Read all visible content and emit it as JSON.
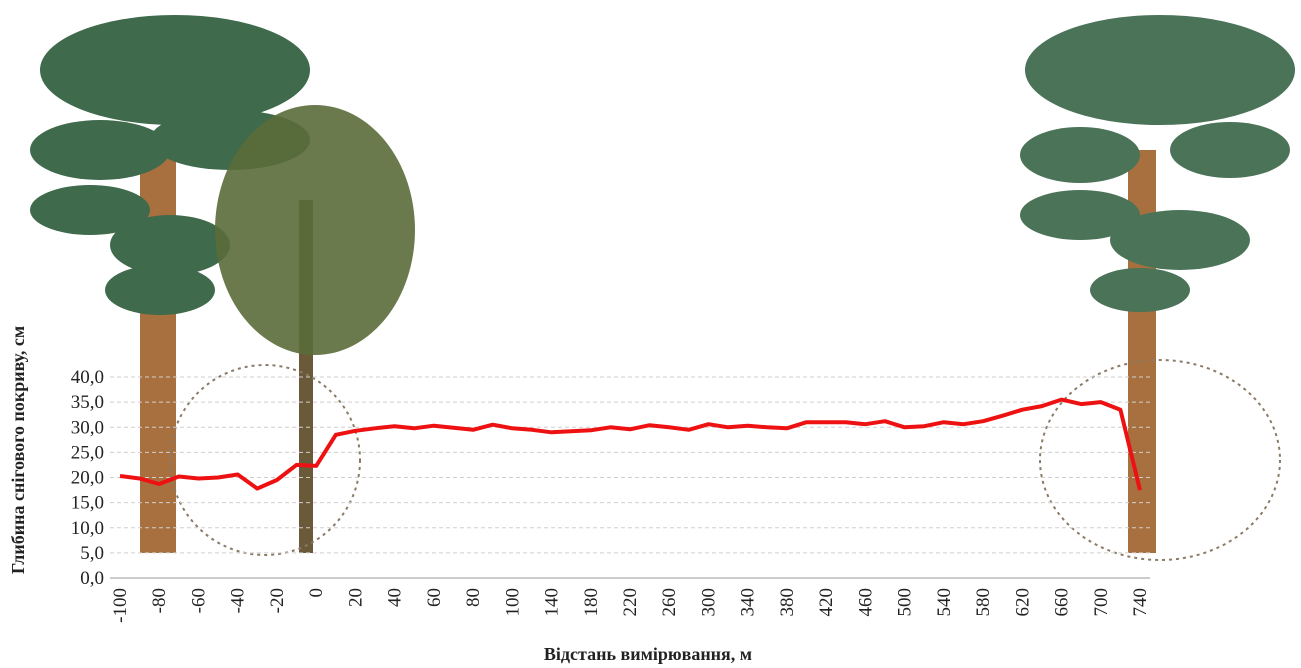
{
  "chart_data": {
    "type": "line",
    "x_label": "Відстань вимірювання, м",
    "y_label": "Глибина снігового покриву, см",
    "categories": [
      "-100",
      null,
      "-80",
      null,
      "-60",
      null,
      "-40",
      null,
      "-20",
      null,
      "0",
      null,
      "20",
      null,
      "40",
      null,
      "60",
      null,
      "80",
      null,
      "100",
      null,
      "140",
      null,
      "180",
      null,
      "220",
      null,
      "260",
      null,
      "300",
      null,
      "340",
      null,
      "380",
      null,
      "420",
      null,
      "460",
      null,
      "500",
      null,
      "540",
      null,
      "580",
      null,
      "620",
      null,
      "660",
      null,
      "700",
      null,
      "740"
    ],
    "values": [
      20.3,
      19.8,
      18.7,
      20.2,
      19.8,
      20.0,
      20.6,
      17.8,
      19.5,
      22.5,
      22.3,
      28.5,
      29.3,
      29.8,
      30.2,
      29.8,
      30.3,
      29.9,
      29.5,
      30.5,
      29.8,
      29.5,
      29.0,
      29.2,
      29.4,
      30.0,
      29.6,
      30.4,
      30.0,
      29.5,
      30.6,
      30.0,
      30.3,
      30.0,
      29.8,
      31.0,
      31.0,
      31.0,
      30.6,
      31.2,
      30.0,
      30.2,
      31.0,
      30.6,
      31.2,
      32.3,
      33.5,
      34.2,
      35.5,
      34.6,
      35.0,
      33.5,
      17.5
    ],
    "color": "#ee1111",
    "ylim": [
      0,
      40
    ],
    "yticks": [
      {
        "value": 0,
        "label": "0,0"
      },
      {
        "value": 5,
        "label": "5,0"
      },
      {
        "value": 10,
        "label": "10,0"
      },
      {
        "value": 15,
        "label": "15,0"
      },
      {
        "value": 20,
        "label": "20,0"
      },
      {
        "value": 25,
        "label": "25,0"
      },
      {
        "value": 30,
        "label": "30,0"
      },
      {
        "value": 35,
        "label": "35,0"
      },
      {
        "value": 40,
        "label": "40,0"
      }
    ],
    "grid": true
  }
}
